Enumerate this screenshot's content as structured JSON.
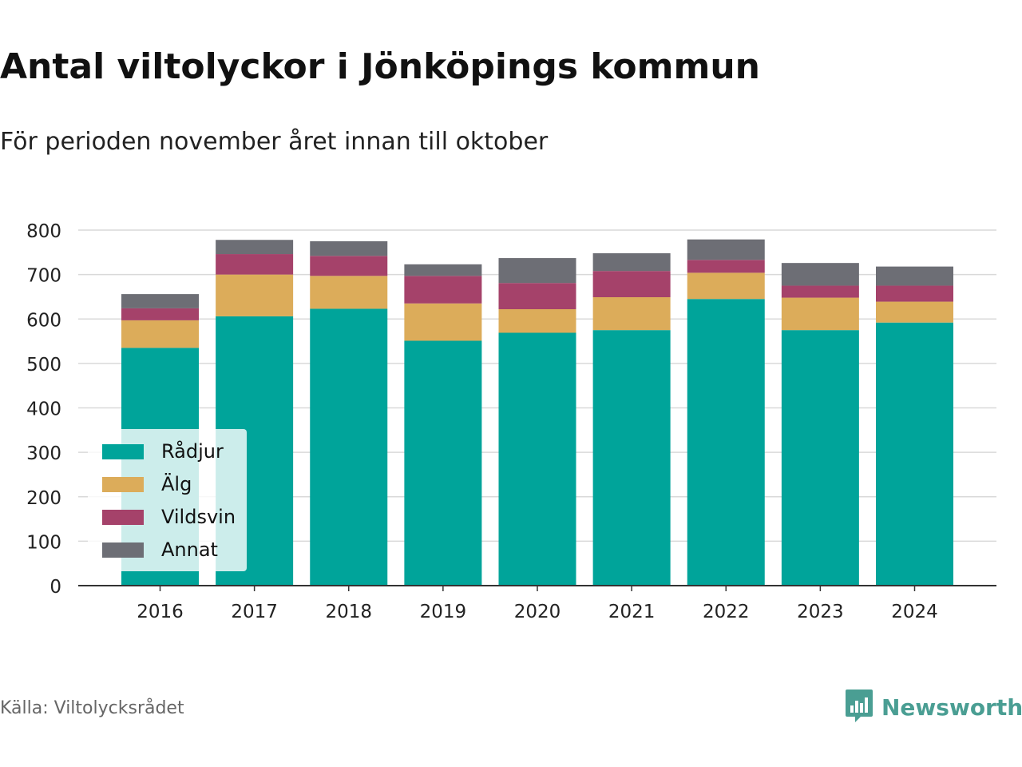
{
  "title": "Antal viltolyckor i Jönköpings kommun",
  "subtitle": "För perioden november året innan till oktober",
  "source": "Källa: Viltolycksrådet",
  "brand": {
    "name": "Newsworthy",
    "icon": "newsworthy-logo-icon",
    "color": "#4a9e93"
  },
  "chart_data": {
    "type": "bar",
    "stacked": true,
    "title": "Antal viltolyckor i Jönköpings kommun",
    "subtitle": "För perioden november året innan till oktober",
    "xlabel": "",
    "ylabel": "",
    "ylim": [
      0,
      800
    ],
    "yticks": [
      0,
      100,
      200,
      300,
      400,
      500,
      600,
      700,
      800
    ],
    "grid": true,
    "legend_position": "bottom-left",
    "categories": [
      "2016",
      "2017",
      "2018",
      "2019",
      "2020",
      "2021",
      "2022",
      "2023",
      "2024"
    ],
    "series": [
      {
        "name": "Rådjur",
        "color": "#00a49a",
        "values": [
          535,
          606,
          623,
          551,
          569,
          575,
          645,
          575,
          592
        ]
      },
      {
        "name": "Älg",
        "color": "#dcac5a",
        "values": [
          62,
          94,
          74,
          84,
          53,
          74,
          59,
          73,
          47
        ]
      },
      {
        "name": "Vildsvin",
        "color": "#a5426a",
        "values": [
          27,
          46,
          45,
          62,
          59,
          59,
          29,
          27,
          36
        ]
      },
      {
        "name": "Annat",
        "color": "#6d6e75",
        "values": [
          32,
          32,
          33,
          26,
          56,
          40,
          46,
          51,
          43
        ]
      }
    ]
  }
}
